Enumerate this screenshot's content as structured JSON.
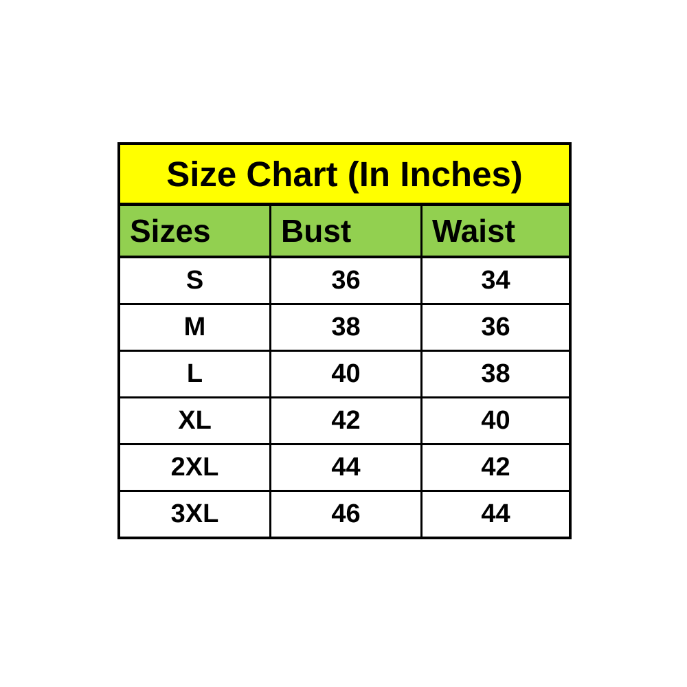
{
  "size_chart": {
    "title": "Size Chart (In Inches)",
    "headers": [
      "Sizes",
      "Bust",
      "Waist"
    ],
    "rows": [
      [
        "S",
        "36",
        "34"
      ],
      [
        "M",
        "38",
        "36"
      ],
      [
        "L",
        "40",
        "38"
      ],
      [
        "XL",
        "42",
        "40"
      ],
      [
        "2XL",
        "44",
        "42"
      ],
      [
        "3XL",
        "46",
        "44"
      ]
    ],
    "colors": {
      "title_background": "#FFFF00",
      "header_background": "#92D050",
      "row_background": "#FFFFFF",
      "border": "#000000",
      "text": "#000000"
    }
  },
  "chart_data": {
    "type": "table",
    "title": "Size Chart (In Inches)",
    "columns": [
      "Sizes",
      "Bust",
      "Waist"
    ],
    "rows": [
      {
        "Sizes": "S",
        "Bust": 36,
        "Waist": 34
      },
      {
        "Sizes": "M",
        "Bust": 38,
        "Waist": 36
      },
      {
        "Sizes": "L",
        "Bust": 40,
        "Waist": 38
      },
      {
        "Sizes": "XL",
        "Bust": 42,
        "Waist": 40
      },
      {
        "Sizes": "2XL",
        "Bust": 44,
        "Waist": 42
      },
      {
        "Sizes": "3XL",
        "Bust": 46,
        "Waist": 44
      }
    ],
    "units": "inches"
  }
}
